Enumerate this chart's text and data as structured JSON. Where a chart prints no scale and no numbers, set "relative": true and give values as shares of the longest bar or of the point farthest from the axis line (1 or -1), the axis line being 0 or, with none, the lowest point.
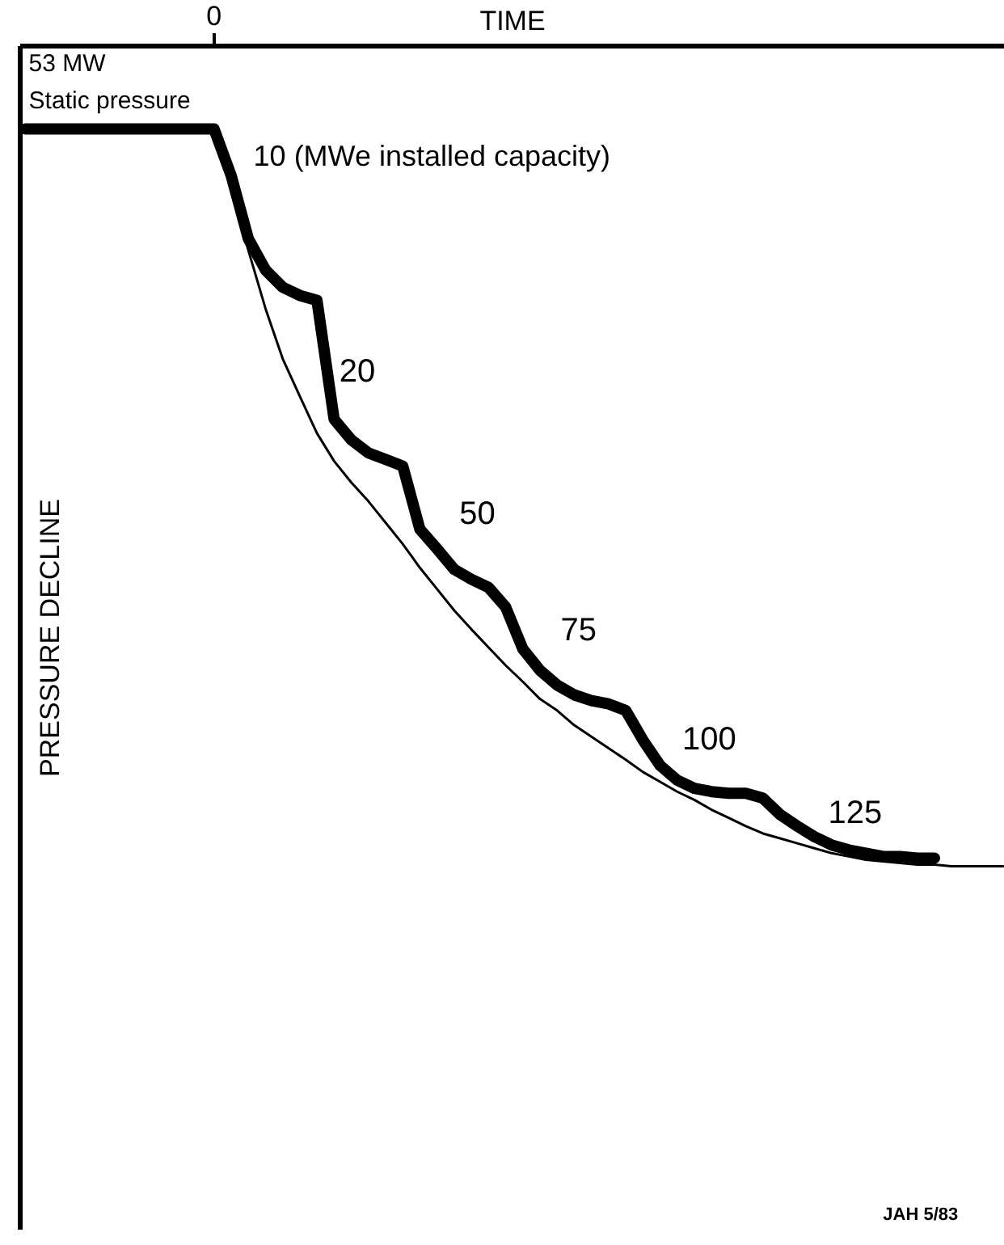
{
  "chart_data": {
    "type": "line",
    "relative": true,
    "xlabel": "TIME",
    "ylabel": "PRESSURE DECLINE",
    "categories": [
      null,
      null,
      null,
      null,
      null,
      null,
      null,
      null,
      null,
      null,
      null,
      null,
      null,
      null,
      null,
      null,
      null,
      null,
      null,
      null,
      null,
      null,
      null,
      null,
      null,
      null,
      null,
      null,
      null,
      null,
      null,
      null,
      null,
      null,
      null,
      null,
      null,
      null,
      null,
      null,
      null,
      null,
      null,
      null,
      null,
      null,
      null,
      null,
      null,
      null,
      null,
      null,
      null,
      null,
      null,
      null,
      null,
      null
    ],
    "series": [
      {
        "color": "#000000",
        "values": [
          -0.101,
          -0.101,
          -0.101,
          -0.101,
          -0.101,
          -0.101,
          -0.101,
          -0.101,
          -0.101,
          -0.101,
          -0.101,
          -0.101,
          -0.158,
          -0.235,
          -0.273,
          -0.294,
          -0.304,
          -0.31,
          -0.455,
          -0.48,
          -0.496,
          -0.504,
          -0.512,
          -0.589,
          -0.613,
          -0.638,
          -0.65,
          -0.66,
          -0.684,
          -0.735,
          -0.761,
          -0.779,
          -0.791,
          -0.798,
          -0.802,
          -0.81,
          -0.846,
          -0.877,
          -0.895,
          -0.905,
          -0.909,
          -0.911,
          -0.911,
          -0.917,
          -0.937,
          -0.951,
          -0.964,
          -0.974,
          -0.98,
          -0.984,
          -0.988,
          -0.988,
          -0.99,
          -0.99,
          null,
          null,
          null,
          null
        ]
      },
      {
        "color": "#000000",
        "values": [
          null,
          null,
          null,
          null,
          null,
          null,
          null,
          null,
          null,
          null,
          null,
          -0.101,
          -0.168,
          -0.249,
          -0.32,
          -0.381,
          -0.427,
          -0.472,
          -0.506,
          -0.532,
          -0.555,
          -0.581,
          -0.607,
          -0.636,
          -0.662,
          -0.688,
          -0.711,
          -0.733,
          -0.755,
          -0.775,
          -0.796,
          -0.81,
          -0.828,
          -0.842,
          -0.856,
          -0.87,
          -0.885,
          -0.897,
          -0.909,
          -0.919,
          -0.931,
          -0.941,
          -0.951,
          -0.96,
          -0.966,
          -0.972,
          -0.978,
          -0.984,
          -0.988,
          -0.992,
          -0.994,
          -0.996,
          -0.998,
          -0.998,
          -1,
          -1,
          -1,
          -1
        ]
      }
    ],
    "annotations": [
      "0",
      "53 MW",
      "Static pressure",
      "10 (MWe installed capacity)",
      "20",
      "50",
      "75",
      "100",
      "125",
      "JAH 5/83"
    ],
    "grid": false,
    "marker": "none",
    "line_style": "solid"
  }
}
